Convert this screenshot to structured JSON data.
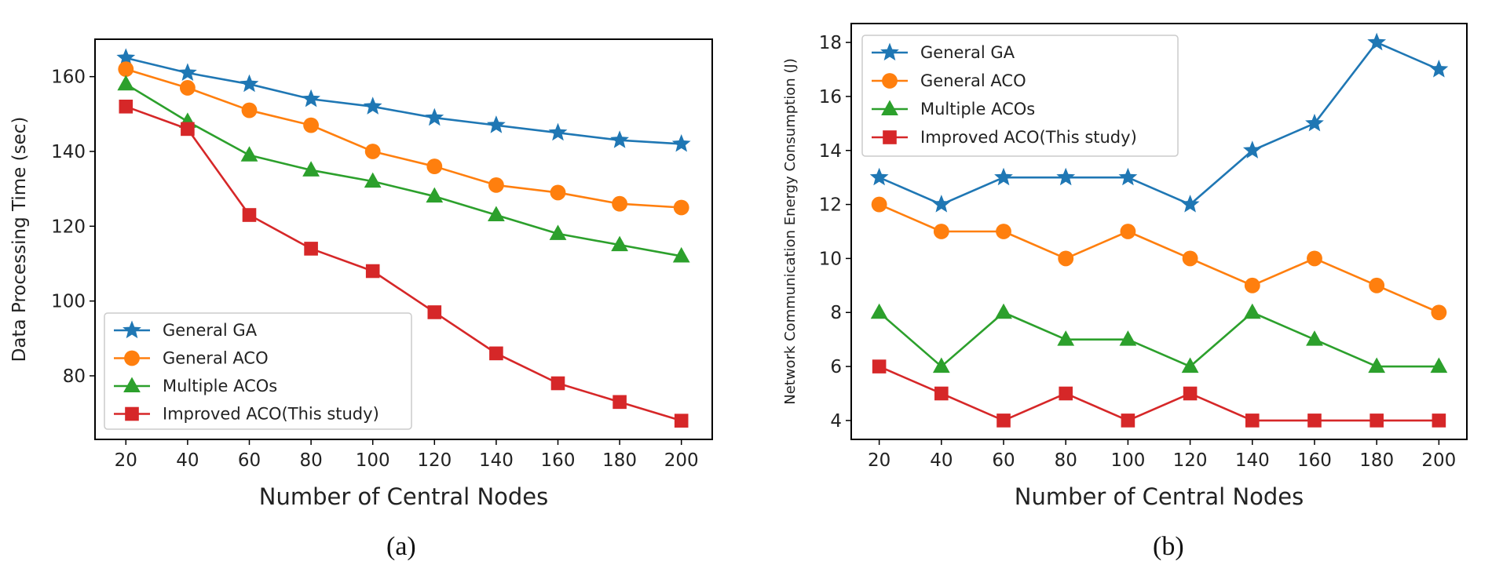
{
  "chart_data": [
    {
      "type": "line",
      "caption": "(a)",
      "title": "",
      "xlabel": "Number of Central Nodes",
      "ylabel": "Data Processing Time (sec)",
      "x": [
        20,
        40,
        60,
        80,
        100,
        120,
        140,
        160,
        180,
        200
      ],
      "xticks": [
        "20",
        "40",
        "60",
        "80",
        "100",
        "120",
        "140",
        "160",
        "180",
        "200"
      ],
      "xlim": [
        10,
        210
      ],
      "yticks": [
        80,
        100,
        120,
        140,
        160
      ],
      "ylim": [
        63,
        170
      ],
      "grid": false,
      "legend_position": "lower-left",
      "series": [
        {
          "name": "General GA",
          "color": "#1f77b4",
          "marker": "star",
          "values": [
            165,
            161,
            158,
            154,
            152,
            149,
            147,
            145,
            143,
            142
          ]
        },
        {
          "name": "General ACO",
          "color": "#ff7f0e",
          "marker": "circle",
          "values": [
            162,
            157,
            151,
            147,
            140,
            136,
            131,
            129,
            126,
            125
          ]
        },
        {
          "name": "Multiple ACOs",
          "color": "#2ca02c",
          "marker": "triangle",
          "values": [
            158,
            148,
            139,
            135,
            132,
            128,
            123,
            118,
            115,
            112
          ]
        },
        {
          "name": "Improved ACO(This study)",
          "color": "#d62728",
          "marker": "square",
          "values": [
            152,
            146,
            123,
            114,
            108,
            97,
            86,
            78,
            73,
            68
          ]
        }
      ]
    },
    {
      "type": "line",
      "caption": "(b)",
      "title": "",
      "xlabel": "Number of Central Nodes",
      "ylabel": "Network Communication Energy Consumption (J)",
      "x": [
        20,
        40,
        60,
        80,
        100,
        120,
        140,
        160,
        180,
        200
      ],
      "xticks": [
        "20",
        "40",
        "60",
        "80",
        "100",
        "120",
        "140",
        "160",
        "180",
        "200"
      ],
      "xlim": [
        11,
        209
      ],
      "yticks": [
        4,
        6,
        8,
        10,
        12,
        14,
        16,
        18
      ],
      "ylim": [
        3.3,
        18.7
      ],
      "grid": false,
      "legend_position": "upper-left",
      "series": [
        {
          "name": "General GA",
          "color": "#1f77b4",
          "marker": "star",
          "values": [
            13,
            12,
            13,
            13,
            13,
            12,
            14,
            15,
            18,
            17
          ]
        },
        {
          "name": "General ACO",
          "color": "#ff7f0e",
          "marker": "circle",
          "values": [
            12,
            11,
            11,
            10,
            11,
            10,
            9,
            10,
            9,
            8
          ]
        },
        {
          "name": "Multiple ACOs",
          "color": "#2ca02c",
          "marker": "triangle",
          "values": [
            8,
            6,
            8,
            7,
            7,
            6,
            8,
            7,
            6,
            6
          ]
        },
        {
          "name": "Improved ACO(This study)",
          "color": "#d62728",
          "marker": "square",
          "values": [
            6,
            5,
            4,
            5,
            4,
            5,
            4,
            4,
            4,
            4
          ]
        }
      ]
    }
  ]
}
